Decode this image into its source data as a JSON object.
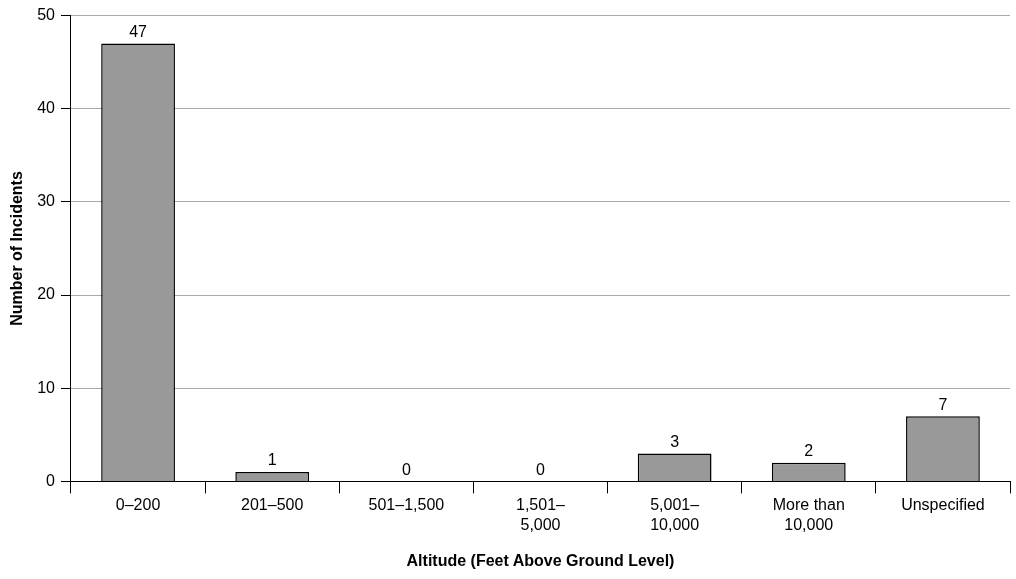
{
  "chart_data": {
    "type": "bar",
    "xlabel": "Altitude (Feet Above Ground Level)",
    "ylabel": "Number of Incidents",
    "categories": [
      "0–200",
      "201–500",
      "501–1,500",
      "1,501–\n5,000",
      "5,001–\n10,000",
      "More than\n10,000",
      "Unspecified"
    ],
    "values": [
      47,
      1,
      0,
      0,
      3,
      2,
      7
    ],
    "color": "#999999",
    "ylim": [
      0,
      50
    ],
    "yticks": [
      0,
      10,
      20,
      30,
      40,
      50
    ],
    "grid": "y",
    "data_labels": true,
    "legend": false
  }
}
